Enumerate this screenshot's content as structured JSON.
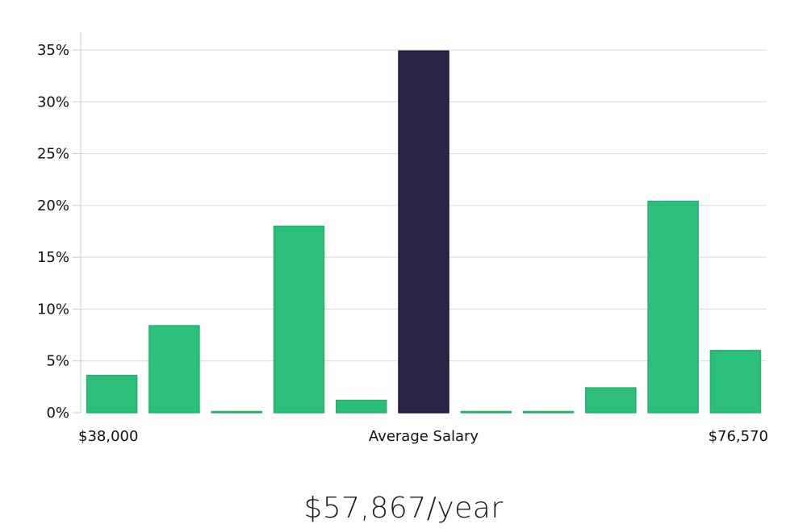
{
  "chart_data": {
    "type": "bar",
    "categories": [
      "1",
      "2",
      "3",
      "4",
      "5",
      "6",
      "7",
      "8",
      "9",
      "10",
      "11"
    ],
    "values": [
      3.6,
      8.4,
      0.0,
      18.0,
      1.2,
      34.9,
      0.0,
      0.0,
      2.4,
      20.4,
      6.0
    ],
    "highlight_index": 5,
    "ylim": [
      0,
      36
    ],
    "yticks": [
      "0%",
      "5%",
      "10%",
      "15%",
      "20%",
      "25%",
      "30%",
      "35%"
    ],
    "ytick_values": [
      0,
      5,
      10,
      15,
      20,
      25,
      30,
      35
    ],
    "x_labels": {
      "min": "$38,000",
      "center": "Average Salary",
      "max": "$76,570"
    },
    "grid": true,
    "colors": {
      "bar": "#2bbf7a",
      "bar_border": "#24b06f",
      "highlight": "#282546",
      "highlight_border": "#1c1a3a",
      "grid": "#d9d9d9",
      "axis": "#cccccc"
    }
  },
  "salary_text": "$57,867/year"
}
